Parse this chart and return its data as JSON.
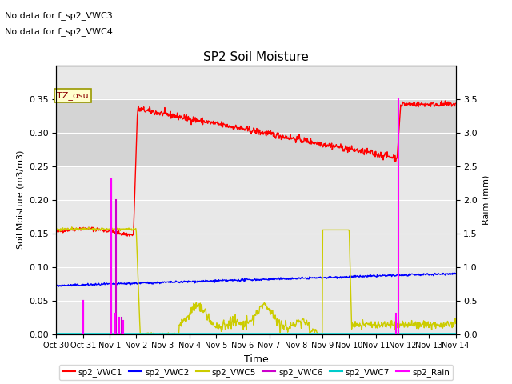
{
  "title": "SP2 Soil Moisture",
  "xlabel": "Time",
  "ylabel_left": "Soil Moisture (m3/m3)",
  "ylabel_right": "Raim (mm)",
  "no_data_text": [
    "No data for f_sp2_VWC3",
    "No data for f_sp2_VWC4"
  ],
  "tz_label": "TZ_osu",
  "ylim_left": [
    0,
    0.4
  ],
  "ylim_right": [
    0,
    4.0
  ],
  "x_tick_labels": [
    "Oct 30",
    "Oct 31",
    "Nov 1",
    "Nov 2",
    "Nov 3",
    "Nov 4",
    "Nov 5",
    "Nov 6",
    "Nov 7",
    "Nov 8",
    "Nov 9",
    "Nov 10",
    "Nov 11",
    "Nov 12",
    "Nov 13",
    "Nov 14"
  ],
  "gray_band": [
    0.25,
    0.35
  ],
  "vwc1_color": "#ff0000",
  "vwc2_color": "#0000ff",
  "vwc5_color": "#cccc00",
  "vwc6_color": "#cc00cc",
  "vwc7_color": "#00cccc",
  "rain_color": "#ff00ff",
  "plot_bg": "#e8e8e8",
  "grid_color": "#ffffff"
}
